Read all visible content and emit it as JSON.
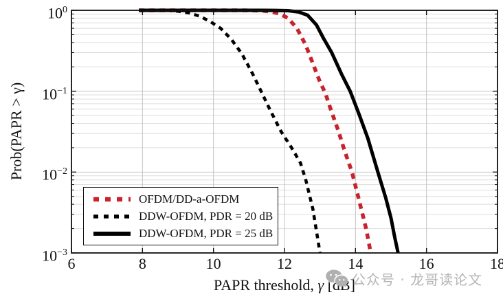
{
  "chart_data": {
    "type": "line",
    "title": "",
    "xlabel_prefix": "PAPR threshold, ",
    "xlabel_gamma": "γ",
    "xlabel_suffix": " [dB]",
    "ylabel": "Prob(PAPR > γ)",
    "xlim": [
      6,
      18
    ],
    "ylog_min_exp": -3,
    "ylog_max_exp": 0,
    "xticks": [
      6,
      8,
      10,
      12,
      14,
      16,
      18
    ],
    "yticks": [
      {
        "base": "10",
        "exp": "0",
        "value": 1
      },
      {
        "base": "10",
        "exp": "−1",
        "value": 0.1
      },
      {
        "base": "10",
        "exp": "−2",
        "value": 0.01
      },
      {
        "base": "10",
        "exp": "−3",
        "value": 0.001
      }
    ],
    "grid": "major and log-minor horizontal, major vertical",
    "legend_position": "lower-left",
    "colors": {
      "red_series": "#c8232c",
      "black_series": "#000000",
      "major_grid": "#c3c3c3",
      "minor_grid": "#dedede",
      "frame": "#111111"
    },
    "series": [
      {
        "name": "OFDM/DD-a-OFDM",
        "color": "#c8232c",
        "style": "dashed-thick",
        "points": [
          [
            7.9,
            1.0
          ],
          [
            8.5,
            1.0
          ],
          [
            9.2,
            1.0
          ],
          [
            10.0,
            1.0
          ],
          [
            10.6,
            1.0
          ],
          [
            11.0,
            0.998
          ],
          [
            11.35,
            0.99
          ],
          [
            11.6,
            0.965
          ],
          [
            11.85,
            0.91
          ],
          [
            12.1,
            0.8
          ],
          [
            12.35,
            0.6
          ],
          [
            12.6,
            0.37
          ],
          [
            12.8,
            0.22
          ],
          [
            13.0,
            0.13
          ],
          [
            13.15,
            0.095
          ],
          [
            13.3,
            0.06
          ],
          [
            13.5,
            0.034
          ],
          [
            13.7,
            0.018
          ],
          [
            13.9,
            0.01
          ],
          [
            14.1,
            0.0045
          ],
          [
            14.3,
            0.002
          ],
          [
            14.43,
            0.001
          ]
        ]
      },
      {
        "name": "DDW-OFDM, PDR = 20 dB",
        "color": "#000000",
        "style": "dashed",
        "points": [
          [
            7.9,
            1.0
          ],
          [
            8.4,
            1.0
          ],
          [
            8.75,
            0.995
          ],
          [
            9.0,
            0.975
          ],
          [
            9.3,
            0.93
          ],
          [
            9.6,
            0.85
          ],
          [
            9.9,
            0.73
          ],
          [
            10.2,
            0.6
          ],
          [
            10.5,
            0.44
          ],
          [
            10.8,
            0.29
          ],
          [
            11.1,
            0.165
          ],
          [
            11.34,
            0.1
          ],
          [
            11.6,
            0.058
          ],
          [
            11.9,
            0.032
          ],
          [
            12.2,
            0.02
          ],
          [
            12.45,
            0.013
          ],
          [
            12.6,
            0.008
          ],
          [
            12.8,
            0.0035
          ],
          [
            13.0,
            0.001
          ]
        ]
      },
      {
        "name": "DDW-OFDM, PDR = 25 dB",
        "color": "#000000",
        "style": "solid",
        "points": [
          [
            7.9,
            1.0
          ],
          [
            9.0,
            1.0
          ],
          [
            10.0,
            1.0
          ],
          [
            11.0,
            1.0
          ],
          [
            11.7,
            0.999
          ],
          [
            12.1,
            0.99
          ],
          [
            12.4,
            0.955
          ],
          [
            12.65,
            0.87
          ],
          [
            12.9,
            0.66
          ],
          [
            13.1,
            0.45
          ],
          [
            13.33,
            0.3
          ],
          [
            13.6,
            0.165
          ],
          [
            13.85,
            0.1
          ],
          [
            14.1,
            0.052
          ],
          [
            14.35,
            0.026
          ],
          [
            14.63,
            0.01
          ],
          [
            14.85,
            0.0048
          ],
          [
            15.0,
            0.0027
          ],
          [
            15.1,
            0.0016
          ],
          [
            15.2,
            0.001
          ]
        ]
      }
    ]
  },
  "watermark": {
    "text": "公众号 · 龙哥读论文",
    "icon": "wechat-icon",
    "color": "#b6b6b6"
  }
}
